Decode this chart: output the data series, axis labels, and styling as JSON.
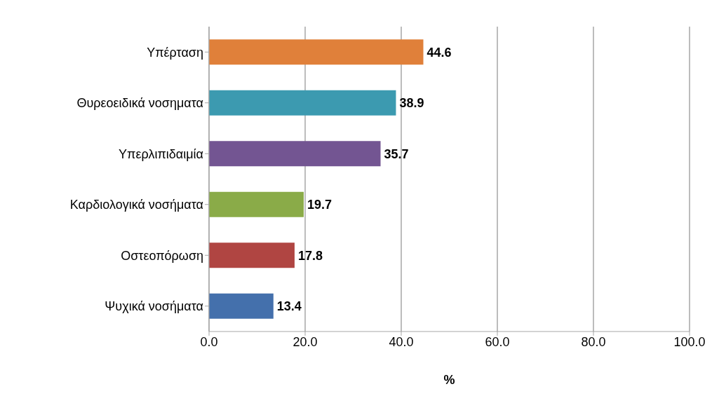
{
  "chart_data": {
    "type": "bar",
    "orientation": "horizontal",
    "categories": [
      "Υπέρταση",
      "Θυρεοειδικά νοσηματα",
      "Υπερλιπιδαιμία",
      "Καρδιολογικά νοσήματα",
      "Οστεοπόρωση",
      "Ψυχικά νοσήματα"
    ],
    "values": [
      44.6,
      38.9,
      35.7,
      19.7,
      17.8,
      13.4
    ],
    "colors": [
      "#e0803a",
      "#3c9ab0",
      "#735592",
      "#8aab48",
      "#b04542",
      "#4470ac"
    ],
    "xlim": [
      0,
      100
    ],
    "xticks": [
      {
        "value": 0,
        "label": "0.0"
      },
      {
        "value": 20,
        "label": "20.0"
      },
      {
        "value": 40,
        "label": "40.0"
      },
      {
        "value": 60,
        "label": "60.0"
      },
      {
        "value": 80,
        "label": "80.0"
      },
      {
        "value": 100,
        "label": "100.0"
      }
    ],
    "xlabel": "%",
    "grid": "x",
    "data_labels": true
  }
}
